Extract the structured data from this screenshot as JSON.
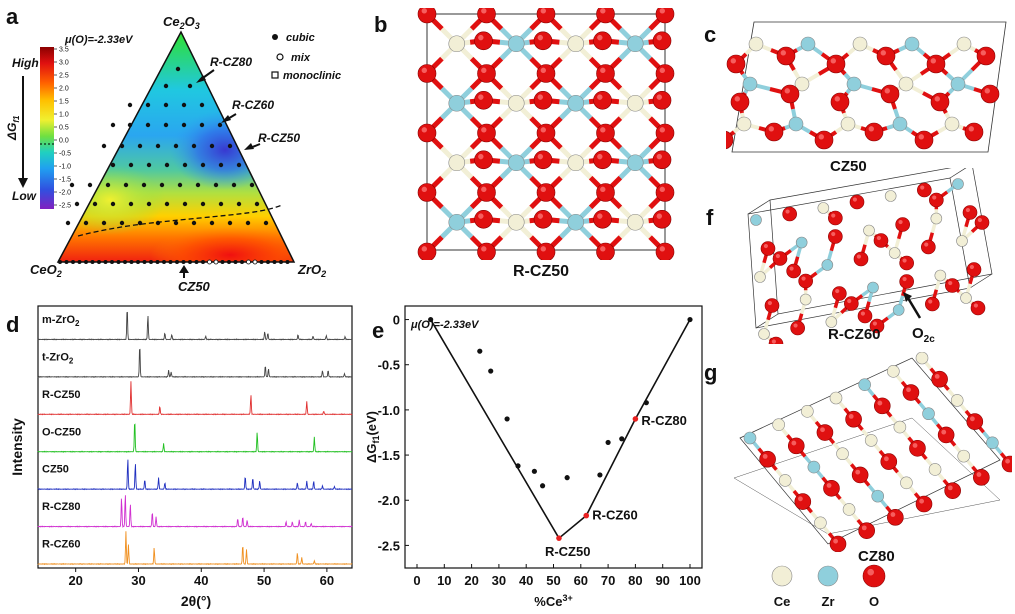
{
  "panels": {
    "a": {
      "letter": "a",
      "mu": "μ(O)=-2.33eV",
      "vertex_top": "Ce",
      "vertex_top_sub1": "2",
      "vertex_top_o": "O",
      "vertex_top_sub2": "3",
      "vertex_left": "CeO",
      "vertex_left_sub": "2",
      "vertex_right": "ZrO",
      "vertex_right_sub": "2",
      "labels": [
        "R-CZ80",
        "R-CZ60",
        "R-CZ50"
      ],
      "bottom_label": "CZ50",
      "legend": {
        "cubic": "cubic",
        "mix": "mix",
        "monoclinic": "monoclinic"
      },
      "colorbar": {
        "high": "High",
        "low": "Low",
        "axis": "ΔG",
        "axis_sub": "f1",
        "ticks": [
          "3.5",
          "3.0",
          "2.5",
          "2.0",
          "1.5",
          "1.0",
          "0.5",
          "0.0",
          "-0.5",
          "-1.0",
          "-1.5",
          "-2.0",
          "-2.5"
        ]
      }
    },
    "b": {
      "letter": "b",
      "caption": "R-CZ50"
    },
    "c": {
      "letter": "c",
      "caption": "CZ50"
    },
    "d": {
      "letter": "d",
      "ylabel": "Intensity",
      "xlabel": "2θ(°)",
      "xticks": [
        "20",
        "30",
        "40",
        "50",
        "60"
      ],
      "traces": [
        {
          "name": "m-ZrO",
          "sub": "2",
          "color": "#444444"
        },
        {
          "name": "t-ZrO",
          "sub": "2",
          "color": "#444444"
        },
        {
          "name": "R-CZ50",
          "sub": "",
          "color": "#e03030"
        },
        {
          "name": "O-CZ50",
          "sub": "",
          "color": "#22c022"
        },
        {
          "name": "CZ50",
          "sub": "",
          "color": "#2030c0"
        },
        {
          "name": "R-CZ80",
          "sub": "",
          "color": "#d030d0"
        },
        {
          "name": "R-CZ60",
          "sub": "",
          "color": "#f09020"
        }
      ]
    },
    "e": {
      "letter": "e",
      "mu": "μ(O)=-2.33eV"
    },
    "f": {
      "letter": "f",
      "caption": "R-CZ60",
      "o2c": "O",
      "o2c_sub": "2c"
    },
    "g": {
      "letter": "g",
      "caption": "CZ80",
      "legend": [
        {
          "name": "Ce",
          "color": "#f2efd6"
        },
        {
          "name": "Zr",
          "color": "#8fcfdc"
        },
        {
          "name": "O",
          "color": "#e01010"
        }
      ]
    }
  },
  "chart_data": {
    "type": "scatter",
    "title": "",
    "xlabel": "%Ce",
    "xlabel_sup": "3+",
    "ylabel": "ΔG",
    "ylabel_sub": "f1",
    "ylabel_unit": "(eV)",
    "xlim": [
      0,
      100
    ],
    "ylim": [
      -2.75,
      0.15
    ],
    "xticks": [
      0,
      10,
      20,
      30,
      40,
      50,
      60,
      70,
      80,
      90,
      100
    ],
    "yticks": [
      0,
      -0.5,
      -1.0,
      -1.5,
      -2.0,
      -2.5
    ],
    "ytick_labels": [
      "0",
      "-0.5",
      "-1.0",
      "-1.5",
      "-2.0",
      "-2.5"
    ],
    "hull": {
      "x": [
        5,
        52,
        62,
        80,
        100
      ],
      "y": [
        0,
        -2.42,
        -2.17,
        -1.1,
        0
      ]
    },
    "points": [
      {
        "x": 5,
        "y": 0
      },
      {
        "x": 23,
        "y": -0.35
      },
      {
        "x": 27,
        "y": -0.57
      },
      {
        "x": 33,
        "y": -1.1
      },
      {
        "x": 37,
        "y": -1.62
      },
      {
        "x": 43,
        "y": -1.68
      },
      {
        "x": 46,
        "y": -1.84
      },
      {
        "x": 55,
        "y": -1.75
      },
      {
        "x": 67,
        "y": -1.72
      },
      {
        "x": 70,
        "y": -1.36
      },
      {
        "x": 75,
        "y": -1.32
      },
      {
        "x": 84,
        "y": -0.92
      },
      {
        "x": 100,
        "y": 0
      }
    ],
    "highlighted": [
      {
        "x": 52,
        "y": -2.42,
        "label": "R-CZ50"
      },
      {
        "x": 62,
        "y": -2.17,
        "label": "R-CZ60"
      },
      {
        "x": 80,
        "y": -1.1,
        "label": "R-CZ80"
      }
    ]
  }
}
